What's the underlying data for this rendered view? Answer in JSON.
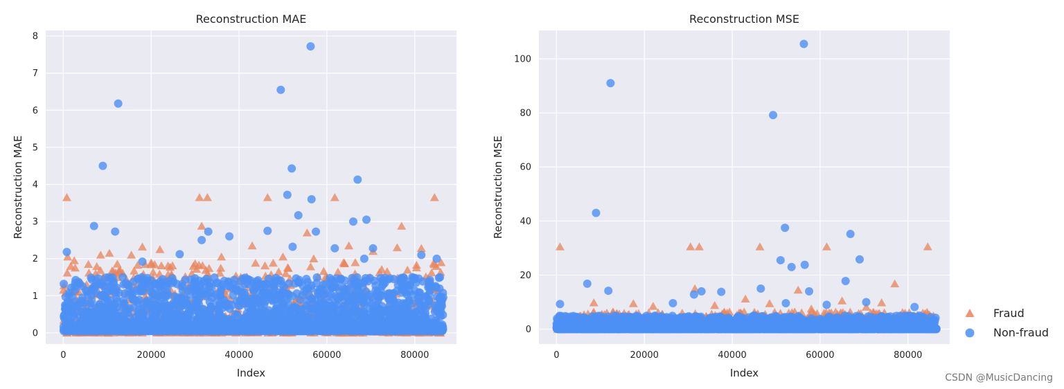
{
  "watermark": "CSDN @MusicDancing",
  "colors": {
    "fraud": "#e9845a",
    "non_fraud": "#4c90f5",
    "plot_background": "#eaeaf2",
    "grid": "#ffffff"
  },
  "legend": {
    "placement": "outside-right",
    "entries": [
      {
        "label": "Fraud",
        "marker": "triangle",
        "color": "#e9845a"
      },
      {
        "label": "Non-fraud",
        "marker": "circle",
        "color": "#4c90f5"
      }
    ]
  },
  "chart_data": [
    {
      "type": "scatter",
      "title": "Reconstruction MAE",
      "xlabel": "Index",
      "ylabel": "Reconstruction MAE",
      "xlim": [
        -4000,
        89500
      ],
      "ylim": [
        -0.3,
        8.15
      ],
      "xticks": [
        0,
        20000,
        40000,
        60000,
        80000
      ],
      "yticks": [
        0,
        1,
        2,
        3,
        4,
        5,
        6,
        7,
        8
      ],
      "grid": true,
      "series": [
        {
          "name": "Fraud",
          "marker": "triangle",
          "highlight_points": [
            {
              "x": 800,
              "y": 3.65
            },
            {
              "x": 31000,
              "y": 3.65
            },
            {
              "x": 32800,
              "y": 3.65
            },
            {
              "x": 46500,
              "y": 3.65
            },
            {
              "x": 61800,
              "y": 3.65
            },
            {
              "x": 84500,
              "y": 3.65
            },
            {
              "x": 31500,
              "y": 2.88
            },
            {
              "x": 77000,
              "y": 2.88
            },
            {
              "x": 55500,
              "y": 2.7
            },
            {
              "x": 18000,
              "y": 2.32
            },
            {
              "x": 43000,
              "y": 2.35
            },
            {
              "x": 65000,
              "y": 2.35
            },
            {
              "x": 22000,
              "y": 2.25
            },
            {
              "x": 81500,
              "y": 2.28
            },
            {
              "x": 76000,
              "y": 2.3
            },
            {
              "x": 1000,
              "y": 2.05
            },
            {
              "x": 8500,
              "y": 2.1
            },
            {
              "x": 10500,
              "y": 2.15
            },
            {
              "x": 2500,
              "y": 1.95
            },
            {
              "x": 15500,
              "y": 2.1
            },
            {
              "x": 36000,
              "y": 2.05
            },
            {
              "x": 50000,
              "y": 2.05
            },
            {
              "x": 57000,
              "y": 2.0
            },
            {
              "x": 70500,
              "y": 2.2
            }
          ],
          "bulk_x_range": [
            0,
            86000
          ],
          "bulk_y_range": [
            0.0,
            1.9
          ],
          "bulk_count_estimate": 800
        },
        {
          "name": "Non-fraud",
          "marker": "circle",
          "highlight_points": [
            {
              "x": 56300,
              "y": 7.72
            },
            {
              "x": 49500,
              "y": 6.55
            },
            {
              "x": 12500,
              "y": 6.18
            },
            {
              "x": 9000,
              "y": 4.5
            },
            {
              "x": 52000,
              "y": 4.43
            },
            {
              "x": 67000,
              "y": 4.13
            },
            {
              "x": 51000,
              "y": 3.72
            },
            {
              "x": 56500,
              "y": 3.6
            },
            {
              "x": 53500,
              "y": 3.17
            },
            {
              "x": 69000,
              "y": 3.05
            },
            {
              "x": 66000,
              "y": 3.0
            },
            {
              "x": 7000,
              "y": 2.88
            },
            {
              "x": 11800,
              "y": 2.73
            },
            {
              "x": 33000,
              "y": 2.73
            },
            {
              "x": 46500,
              "y": 2.75
            },
            {
              "x": 57500,
              "y": 2.73
            },
            {
              "x": 37800,
              "y": 2.6
            },
            {
              "x": 31500,
              "y": 2.5
            },
            {
              "x": 52200,
              "y": 2.32
            },
            {
              "x": 61800,
              "y": 2.28
            },
            {
              "x": 70500,
              "y": 2.28
            },
            {
              "x": 800,
              "y": 2.18
            },
            {
              "x": 26500,
              "y": 2.12
            },
            {
              "x": 81500,
              "y": 2.1
            },
            {
              "x": 68500,
              "y": 2.0
            },
            {
              "x": 85000,
              "y": 2.0
            },
            {
              "x": 18000,
              "y": 1.92
            }
          ],
          "bulk_x_range": [
            0,
            86500
          ],
          "bulk_y_range": [
            0.05,
            1.5
          ],
          "bulk_count_estimate": 2600
        }
      ]
    },
    {
      "type": "scatter",
      "title": "Reconstruction MSE",
      "xlabel": "Index",
      "ylabel": "Reconstruction MSE",
      "xlim": [
        -4000,
        89500
      ],
      "ylim": [
        -5.5,
        110.5
      ],
      "xticks": [
        0,
        20000,
        40000,
        60000,
        80000
      ],
      "yticks": [
        0,
        20,
        40,
        60,
        80,
        100
      ],
      "grid": true,
      "series": [
        {
          "name": "Fraud",
          "marker": "triangle",
          "highlight_points": [
            {
              "x": 800,
              "y": 30.5
            },
            {
              "x": 30500,
              "y": 30.5
            },
            {
              "x": 32500,
              "y": 30.5
            },
            {
              "x": 46300,
              "y": 30.5
            },
            {
              "x": 61500,
              "y": 30.5
            },
            {
              "x": 84500,
              "y": 30.5
            },
            {
              "x": 77000,
              "y": 16.8
            },
            {
              "x": 31500,
              "y": 15.0
            },
            {
              "x": 55000,
              "y": 14.5
            },
            {
              "x": 43000,
              "y": 11.2
            },
            {
              "x": 65000,
              "y": 10.5
            },
            {
              "x": 8500,
              "y": 9.8
            },
            {
              "x": 17500,
              "y": 9.5
            },
            {
              "x": 48500,
              "y": 9.5
            },
            {
              "x": 74000,
              "y": 9.8
            },
            {
              "x": 36000,
              "y": 8.8
            },
            {
              "x": 22000,
              "y": 8.5
            },
            {
              "x": 58000,
              "y": 7.5
            },
            {
              "x": 70500,
              "y": 8.2
            }
          ],
          "bulk_x_range": [
            0,
            86000
          ],
          "bulk_y_range": [
            0.0,
            6.5
          ],
          "bulk_count_estimate": 700
        },
        {
          "name": "Non-fraud",
          "marker": "circle",
          "highlight_points": [
            {
              "x": 56300,
              "y": 105.5
            },
            {
              "x": 12300,
              "y": 91.0
            },
            {
              "x": 49300,
              "y": 79.2
            },
            {
              "x": 9000,
              "y": 43.0
            },
            {
              "x": 52000,
              "y": 37.5
            },
            {
              "x": 66900,
              "y": 35.2
            },
            {
              "x": 69000,
              "y": 25.8
            },
            {
              "x": 51000,
              "y": 25.5
            },
            {
              "x": 56500,
              "y": 23.8
            },
            {
              "x": 53500,
              "y": 23.0
            },
            {
              "x": 65800,
              "y": 17.8
            },
            {
              "x": 7000,
              "y": 16.8
            },
            {
              "x": 46500,
              "y": 15.0
            },
            {
              "x": 11800,
              "y": 14.2
            },
            {
              "x": 33000,
              "y": 14.0
            },
            {
              "x": 57500,
              "y": 14.0
            },
            {
              "x": 37500,
              "y": 13.8
            },
            {
              "x": 31300,
              "y": 12.8
            },
            {
              "x": 70500,
              "y": 10.0
            },
            {
              "x": 26500,
              "y": 9.6
            },
            {
              "x": 800,
              "y": 9.3
            },
            {
              "x": 52200,
              "y": 9.6
            },
            {
              "x": 61500,
              "y": 9.0
            },
            {
              "x": 81500,
              "y": 8.2
            }
          ],
          "bulk_x_range": [
            0,
            86500
          ],
          "bulk_y_range": [
            0.0,
            5.0
          ],
          "bulk_count_estimate": 2400
        }
      ]
    }
  ]
}
